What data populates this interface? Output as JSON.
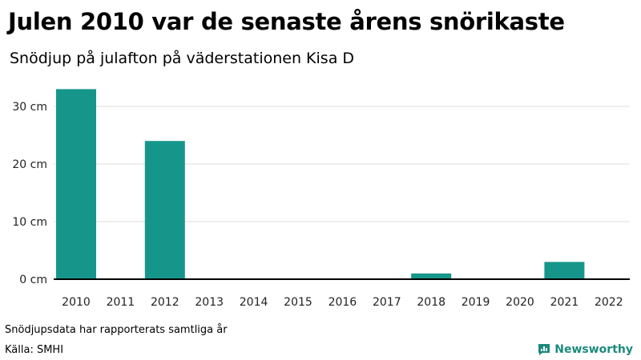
{
  "title": "Julen 2010 var de senaste årens snörikaste",
  "subtitle": "Snödjup på julafton på väderstationen Kisa D",
  "note": "Snödjupsdata har rapporterats samtliga år",
  "source": "Källa: SMHI",
  "brand": "Newsworthy",
  "colors": {
    "bar": "#16968a",
    "grid": "#dddddd",
    "axis": "#000000",
    "brand": "#1b8a7c"
  },
  "icons": {
    "brand_logo": "bar-chart-speech-bubble-icon"
  },
  "chart_data": {
    "type": "bar",
    "categories": [
      "2010",
      "2011",
      "2012",
      "2013",
      "2014",
      "2015",
      "2016",
      "2017",
      "2018",
      "2019",
      "2020",
      "2021",
      "2022"
    ],
    "values": [
      33,
      0,
      24,
      0,
      0,
      0,
      0,
      0,
      1,
      0,
      0,
      3,
      0
    ],
    "unit": "cm",
    "yticks": [
      0,
      10,
      20,
      30
    ],
    "ytick_labels": [
      "0 cm",
      "10 cm",
      "20 cm",
      "30 cm"
    ],
    "ylim": [
      0,
      35
    ],
    "grid": true,
    "legend": "none"
  }
}
